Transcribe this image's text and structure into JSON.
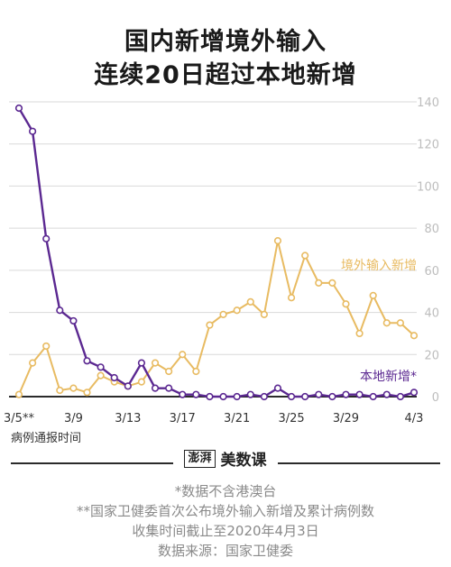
{
  "title_line1": "国内新增境外输入",
  "title_line2": "连续20日超过本地新增",
  "chart_data": {
    "type": "line",
    "x": [
      "3/5**",
      "3/6",
      "3/7",
      "3/8",
      "3/9",
      "3/10",
      "3/11",
      "3/12",
      "3/13",
      "3/14",
      "3/15",
      "3/16",
      "3/17",
      "3/18",
      "3/19",
      "3/20",
      "3/21",
      "3/22",
      "3/23",
      "3/24",
      "3/25",
      "3/26",
      "3/27",
      "3/28",
      "3/29",
      "3/30",
      "3/31",
      "4/1",
      "4/2",
      "4/3"
    ],
    "xticks": [
      "3/5**",
      "3/9",
      "3/13",
      "3/17",
      "3/21",
      "3/25",
      "3/29",
      "4/3"
    ],
    "xlabel": "病例通报时间",
    "yticks": [
      0,
      20,
      40,
      60,
      80,
      100,
      120,
      140
    ],
    "ylim": [
      0,
      140
    ],
    "grid": "horizontal",
    "series": [
      {
        "name": "境外输入新增",
        "color": "#e8bb62",
        "values": [
          1,
          16,
          24,
          3,
          4,
          2,
          10,
          7,
          5,
          7,
          16,
          12,
          20,
          12,
          34,
          39,
          41,
          45,
          39,
          74,
          47,
          67,
          54,
          54,
          44,
          30,
          48,
          35,
          35,
          29
        ]
      },
      {
        "name": "本地新增*",
        "color": "#5b2891",
        "values": [
          137,
          126,
          75,
          41,
          36,
          17,
          14,
          9,
          5,
          16,
          4,
          4,
          1,
          1,
          0,
          0,
          0,
          1,
          0,
          4,
          0,
          0,
          1,
          0,
          1,
          1,
          0,
          1,
          0,
          2
        ]
      }
    ]
  },
  "brand": {
    "seal": "澎湃",
    "name": "美数课"
  },
  "notes": [
    "*数据不含港澳台",
    "**国家卫健委首次公布境外输入新增及累计病例数",
    "收集时间截止至2020年4月3日",
    "数据来源：国家卫健委"
  ]
}
